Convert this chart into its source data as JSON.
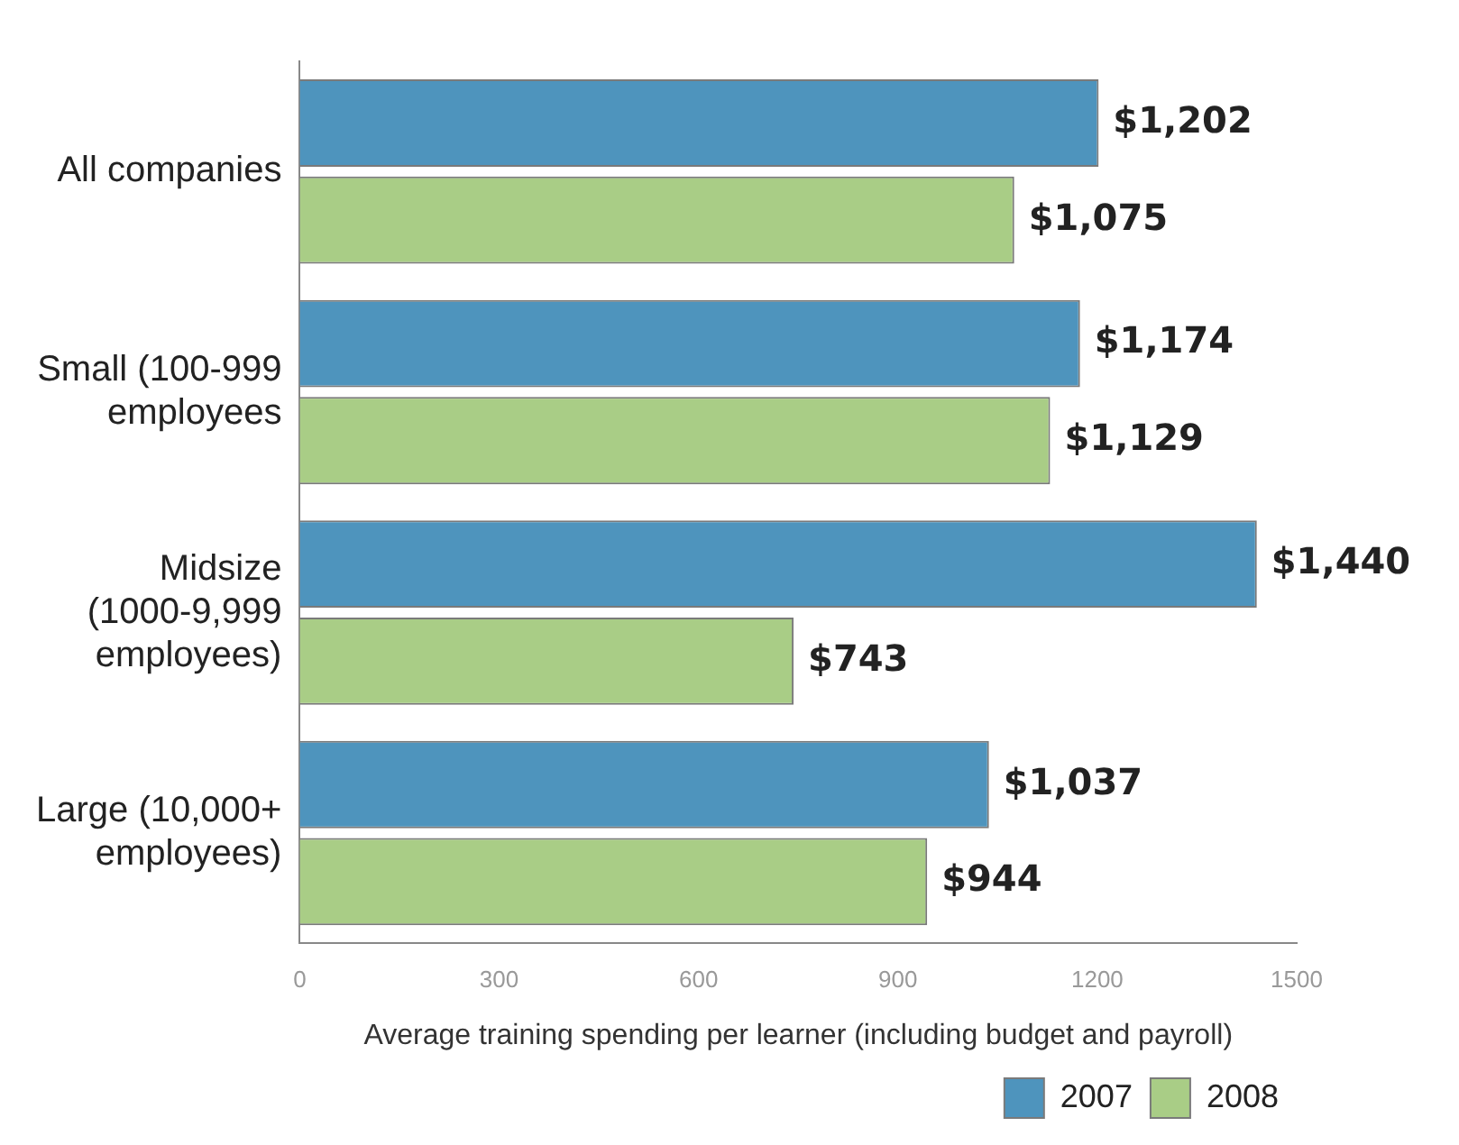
{
  "chart_data": {
    "type": "bar",
    "orientation": "horizontal",
    "xlabel": "Average training spending per learner (including budget and payroll)",
    "categories": [
      "All companies",
      "Small (100-999 employees",
      "Midsize (1000-9,999 employees)",
      "Large (10,000+ employees)"
    ],
    "series": [
      {
        "name": "2007",
        "color": "#4e94bd",
        "values": [
          1202,
          1174,
          1440,
          1037
        ],
        "value_labels": [
          "$1,202",
          "$1,174",
          "$1,440",
          "$1,037"
        ]
      },
      {
        "name": "2008",
        "color": "#a9cd86",
        "values": [
          1075,
          1129,
          743,
          944
        ],
        "value_labels": [
          "$1,075",
          "$1,129",
          "$743",
          "$944"
        ]
      }
    ],
    "xlim": [
      0,
      1500
    ],
    "xticks": [
      0,
      300,
      600,
      900,
      1200,
      1500
    ],
    "grid": false,
    "legend": "bottom right"
  }
}
